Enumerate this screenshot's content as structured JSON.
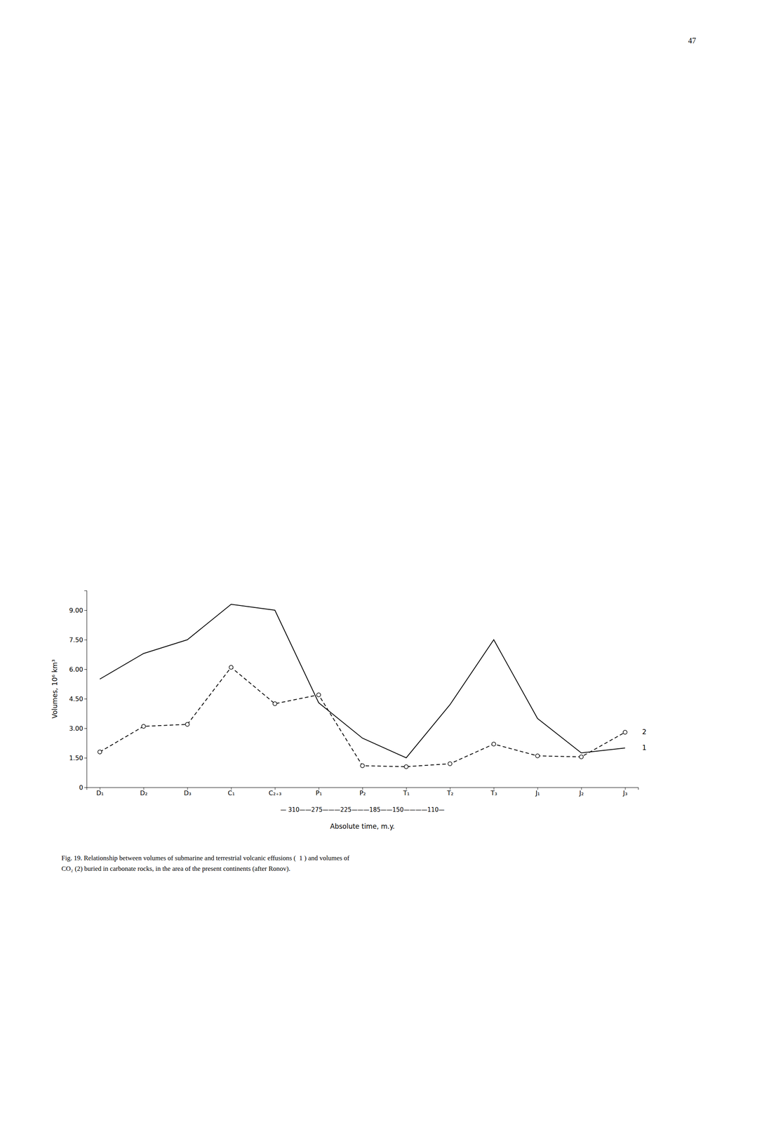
{
  "chart_data": {
    "type": "line",
    "categories": [
      "D₁",
      "D₂",
      "D₃",
      "C₁",
      "C₂₊₃",
      "P₁",
      "P₂",
      "T₁",
      "T₂",
      "T₃",
      "J₁",
      "J₂",
      "J₃"
    ],
    "series": [
      {
        "name": "1",
        "color": "#000000",
        "line_style": "solid",
        "values": [
          5.5,
          6.8,
          7.5,
          9.3,
          9.0,
          4.3,
          2.5,
          1.5,
          4.2,
          7.5,
          3.5,
          1.75,
          2.0
        ]
      },
      {
        "name": "2",
        "color": "#000000",
        "line_style": "dashed",
        "marker": "circle",
        "values": [
          1.8,
          3.1,
          3.2,
          6.1,
          4.25,
          4.7,
          1.1,
          1.05,
          1.2,
          2.2,
          1.6,
          1.55,
          2.8
        ]
      }
    ],
    "ylabel": "Volumes, 10⁶  km³",
    "xlabel": "Absolute time, m.y.",
    "ylim": [
      0,
      10.0
    ],
    "yticks": [
      0,
      {
        "value": 1.5,
        "label": "1.50"
      },
      {
        "value": 3.0,
        "label": "3.00"
      },
      {
        "value": 4.5,
        "label": "4.50"
      },
      {
        "value": 6.0,
        "label": "6.00"
      },
      {
        "value": 7.5,
        "label": "7.50"
      },
      {
        "value": 9.0,
        "label": "9.00"
      }
    ],
    "grid": false,
    "annotations": [
      "— 310——275———225———185——150————110—",
      "Fig. 19. Relationship between volumes of submarine and terrestrial volcanic effusions (  1 ) and volumes of",
      "CO₂ (2) buried in carbonate rocks, in the area of the present continents (after Ronov).",
      "47"
    ]
  }
}
